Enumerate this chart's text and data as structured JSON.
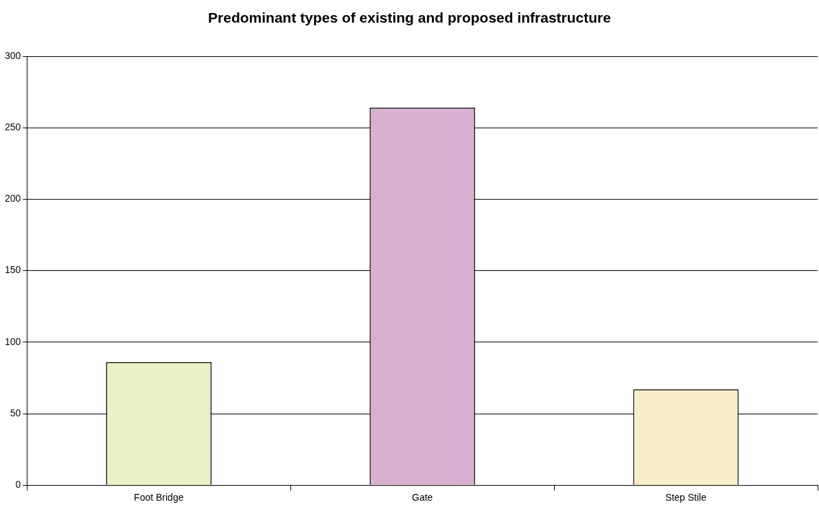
{
  "chart_data": {
    "type": "bar",
    "title": "Predominant types of existing and proposed infrastructure",
    "categories": [
      "Foot Bridge",
      "Gate",
      "Step Stile"
    ],
    "values": [
      86,
      264,
      67
    ],
    "colors": [
      "#eaf1c8",
      "#d9b0d1",
      "#faeecb"
    ],
    "ylim": [
      0,
      300
    ],
    "yticks": [
      0,
      50,
      100,
      150,
      200,
      250,
      300
    ],
    "grid": "y",
    "legend": false
  }
}
